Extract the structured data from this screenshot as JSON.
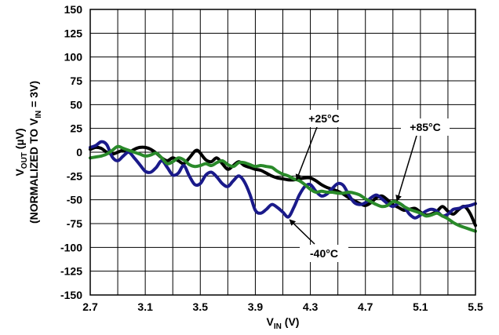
{
  "chart_data": {
    "type": "line",
    "xlabel": {
      "main": "V",
      "sub": "IN",
      "unit": " (V)"
    },
    "ylabel": {
      "line1": {
        "main": "V",
        "sub": "OUT",
        "unit": " (µV)"
      },
      "line2": {
        "prefix": "(NORMALIZED TO V",
        "sub": "IN",
        "suffix": " = 3V)"
      }
    },
    "xlim": [
      2.7,
      5.5
    ],
    "ylim": [
      -150,
      150
    ],
    "x_ticks": [
      2.7,
      3.1,
      3.5,
      3.9,
      4.3,
      4.7,
      5.1,
      5.5
    ],
    "x_tick_labels": [
      "2.7",
      "3.1",
      "3.5",
      "3.9",
      "4.3",
      "4.7",
      "5.1",
      "5.5"
    ],
    "y_ticks": [
      150,
      125,
      100,
      75,
      50,
      25,
      0,
      -25,
      -50,
      -75,
      -100,
      -125,
      -150
    ],
    "y_tick_labels": [
      "150",
      "125",
      "100",
      "75",
      "50",
      "25",
      "0",
      "-25",
      "-50",
      "-75",
      "-100",
      "-125",
      "-150"
    ],
    "grid": true,
    "series": [
      {
        "name": "+25°C",
        "color": "#000000",
        "x": [
          2.7,
          2.74,
          2.78,
          2.82,
          2.86,
          2.9,
          2.94,
          2.98,
          3.02,
          3.06,
          3.1,
          3.14,
          3.18,
          3.22,
          3.26,
          3.3,
          3.34,
          3.38,
          3.42,
          3.46,
          3.48,
          3.5,
          3.54,
          3.58,
          3.62,
          3.66,
          3.7,
          3.74,
          3.78,
          3.82,
          3.86,
          3.9,
          3.94,
          3.98,
          4.02,
          4.06,
          4.1,
          4.14,
          4.18,
          4.22,
          4.26,
          4.3,
          4.34,
          4.38,
          4.42,
          4.46,
          4.5,
          4.54,
          4.58,
          4.62,
          4.66,
          4.7,
          4.74,
          4.78,
          4.82,
          4.86,
          4.9,
          4.94,
          4.98,
          5.02,
          5.06,
          5.1,
          5.14,
          5.18,
          5.22,
          5.26,
          5.3,
          5.34,
          5.38,
          5.42,
          5.46,
          5.5
        ],
        "y": [
          3,
          5,
          4,
          0,
          -2,
          0,
          2,
          0,
          3,
          5,
          5,
          3,
          -1,
          -6,
          -9,
          -6,
          -9,
          -12,
          -6,
          1,
          2,
          -1,
          -8,
          -10,
          -6,
          -12,
          -18,
          -14,
          -10,
          -14,
          -16,
          -18,
          -19,
          -22,
          -25,
          -27,
          -28,
          -29,
          -29,
          -28,
          -27,
          -27,
          -30,
          -34,
          -37,
          -39,
          -41,
          -44,
          -48,
          -51,
          -54,
          -56,
          -53,
          -48,
          -46,
          -50,
          -55,
          -58,
          -61,
          -60,
          -59,
          -63,
          -66,
          -65,
          -62,
          -57,
          -62,
          -65,
          -60,
          -57,
          -64,
          -77
        ]
      },
      {
        "name": "-40°C",
        "color": "#1a1a8a",
        "x": [
          2.7,
          2.74,
          2.78,
          2.82,
          2.86,
          2.9,
          2.94,
          2.98,
          3.02,
          3.06,
          3.1,
          3.14,
          3.18,
          3.22,
          3.26,
          3.3,
          3.34,
          3.38,
          3.42,
          3.46,
          3.5,
          3.54,
          3.58,
          3.62,
          3.66,
          3.7,
          3.74,
          3.78,
          3.82,
          3.86,
          3.9,
          3.94,
          3.98,
          4.02,
          4.06,
          4.1,
          4.14,
          4.18,
          4.22,
          4.26,
          4.3,
          4.34,
          4.38,
          4.42,
          4.46,
          4.5,
          4.54,
          4.58,
          4.62,
          4.66,
          4.7,
          4.74,
          4.78,
          4.82,
          4.86,
          4.9,
          4.94,
          4.98,
          5.02,
          5.06,
          5.1,
          5.14,
          5.18,
          5.22,
          5.26,
          5.3,
          5.34,
          5.38,
          5.42,
          5.46,
          5.5
        ],
        "y": [
          5,
          7,
          11,
          8,
          -5,
          -9,
          -4,
          0,
          -6,
          -13,
          -20,
          -21,
          -16,
          -9,
          -16,
          -24,
          -22,
          -14,
          -25,
          -34,
          -33,
          -24,
          -21,
          -26,
          -33,
          -36,
          -30,
          -25,
          -31,
          -44,
          -61,
          -64,
          -60,
          -55,
          -58,
          -63,
          -68,
          -58,
          -45,
          -36,
          -34,
          -41,
          -46,
          -44,
          -38,
          -33,
          -35,
          -45,
          -53,
          -55,
          -53,
          -48,
          -45,
          -49,
          -54,
          -57,
          -54,
          -57,
          -65,
          -69,
          -66,
          -62,
          -60,
          -62,
          -67,
          -65,
          -60,
          -59,
          -57,
          -56,
          -54
        ]
      },
      {
        "name": "+85°C",
        "color": "#2a8a2a",
        "x": [
          2.7,
          2.74,
          2.78,
          2.82,
          2.86,
          2.9,
          2.94,
          2.98,
          3.02,
          3.06,
          3.1,
          3.14,
          3.18,
          3.22,
          3.26,
          3.3,
          3.34,
          3.38,
          3.42,
          3.46,
          3.5,
          3.54,
          3.58,
          3.62,
          3.66,
          3.7,
          3.74,
          3.78,
          3.82,
          3.86,
          3.9,
          3.94,
          3.98,
          4.02,
          4.06,
          4.1,
          4.14,
          4.18,
          4.22,
          4.26,
          4.3,
          4.34,
          4.38,
          4.42,
          4.46,
          4.5,
          4.54,
          4.58,
          4.62,
          4.66,
          4.7,
          4.74,
          4.78,
          4.82,
          4.86,
          4.9,
          4.94,
          4.98,
          5.02,
          5.06,
          5.1,
          5.14,
          5.18,
          5.22,
          5.26,
          5.3,
          5.34,
          5.38,
          5.42,
          5.46,
          5.5
        ],
        "y": [
          -6,
          -5,
          -4,
          -2,
          2,
          6,
          4,
          2,
          0,
          -2,
          -4,
          -3,
          -1,
          -6,
          -12,
          -10,
          -6,
          -8,
          -13,
          -15,
          -14,
          -12,
          -14,
          -11,
          -9,
          -13,
          -15,
          -11,
          -11,
          -13,
          -15,
          -14,
          -15,
          -16,
          -20,
          -23,
          -25,
          -28,
          -30,
          -34,
          -39,
          -42,
          -41,
          -42,
          -42,
          -43,
          -43,
          -42,
          -43,
          -45,
          -49,
          -52,
          -55,
          -57,
          -56,
          -52,
          -53,
          -57,
          -60,
          -62,
          -64,
          -67,
          -66,
          -64,
          -67,
          -70,
          -74,
          -77,
          -79,
          -81,
          -83
        ]
      }
    ],
    "annotations": [
      {
        "text": "+25°C",
        "target_series": "+25°C",
        "arrow_to": [
          4.2,
          -29
        ]
      },
      {
        "text": "+85°C",
        "target_series": "+85°C",
        "arrow_to": [
          4.93,
          -51
        ]
      },
      {
        "text": "-40°C",
        "target_series": "-40°C",
        "arrow_to": [
          4.15,
          -71
        ]
      }
    ]
  }
}
